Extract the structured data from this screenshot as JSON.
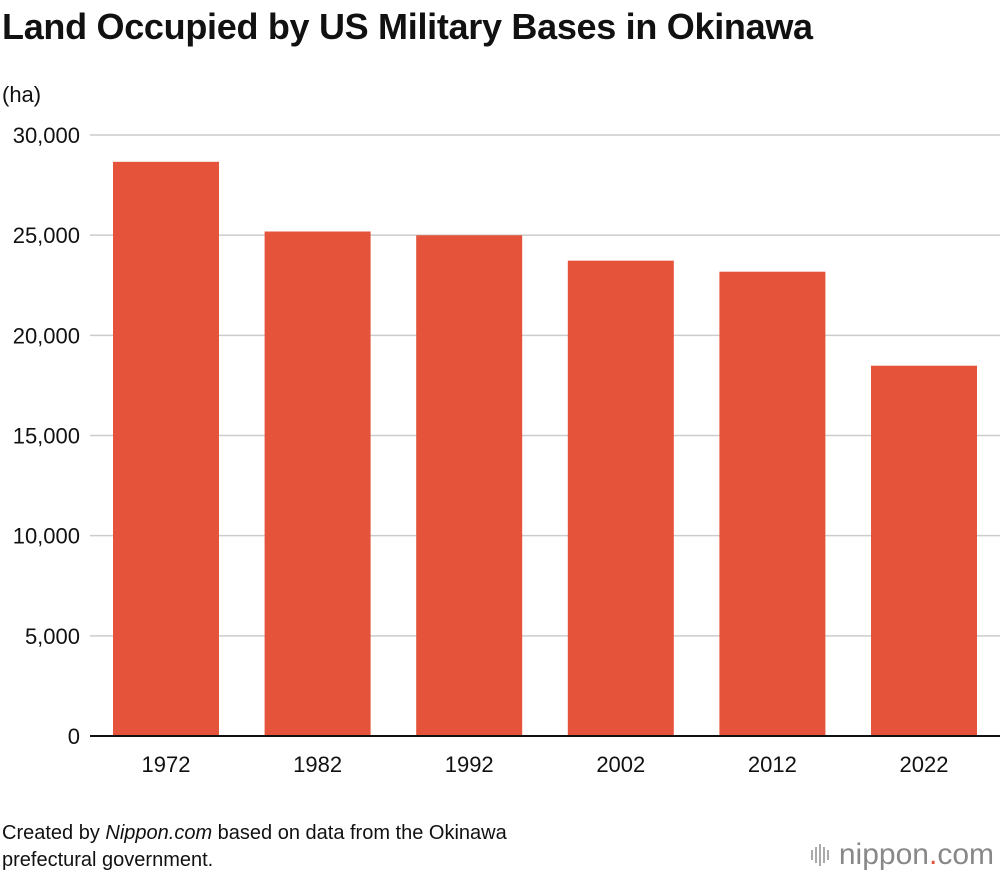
{
  "chart_data": {
    "type": "bar",
    "title": "Land Occupied by US Military Bases in Okinawa",
    "ylabel": "(ha)",
    "xlabel": "",
    "categories": [
      "1972",
      "1982",
      "1992",
      "2002",
      "2012",
      "2022"
    ],
    "values": [
      28661,
      25183,
      24995,
      23728,
      23176,
      18484
    ],
    "ylim": [
      0,
      30000
    ],
    "yticks": [
      0,
      5000,
      10000,
      15000,
      20000,
      25000,
      30000
    ],
    "ytick_labels": [
      "0",
      "5,000",
      "10,000",
      "15,000",
      "20,000",
      "25,000",
      "30,000"
    ],
    "grid": true,
    "bar_color": "#e5533a",
    "grid_color": "#cccccc"
  },
  "footer": {
    "prefix": "Created by ",
    "source_name": "Nippon.com",
    "suffix": " based on data from the Okinawa",
    "line2": "prefectural government."
  },
  "logo": {
    "name": "nippon",
    "dot": ".",
    "tld": "com"
  }
}
